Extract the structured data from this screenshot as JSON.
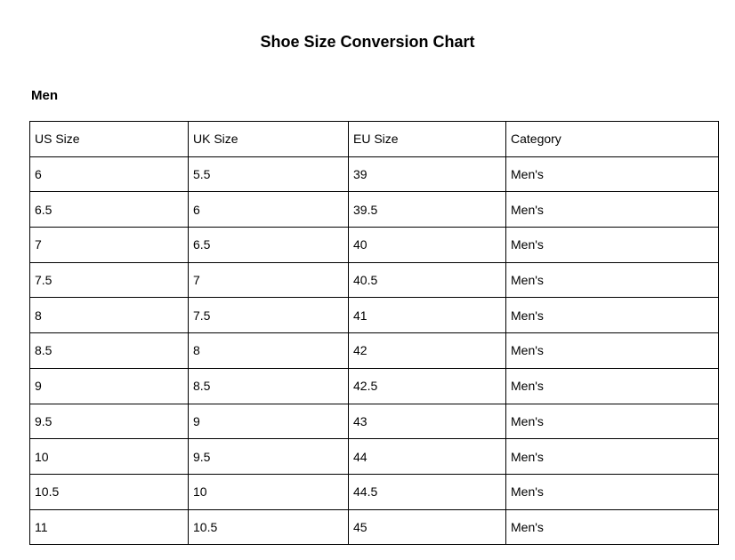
{
  "page": {
    "title": "Shoe Size Conversion Chart",
    "section_heading": "Men"
  },
  "table": {
    "headers": [
      "US Size",
      "UK Size",
      "EU Size",
      "Category"
    ],
    "rows": [
      [
        "6",
        "5.5",
        "39",
        "Men's"
      ],
      [
        "6.5",
        "6",
        "39.5",
        "Men's"
      ],
      [
        "7",
        "6.5",
        "40",
        "Men's"
      ],
      [
        "7.5",
        "7",
        "40.5",
        "Men's"
      ],
      [
        "8",
        "7.5",
        "41",
        "Men's"
      ],
      [
        "8.5",
        "8",
        "42",
        "Men's"
      ],
      [
        "9",
        "8.5",
        "42.5",
        "Men's"
      ],
      [
        "9.5",
        "9",
        "43",
        "Men's"
      ],
      [
        "10",
        "9.5",
        "44",
        "Men's"
      ],
      [
        "10.5",
        "10",
        "44.5",
        "Men's"
      ],
      [
        "11",
        "10.5",
        "45",
        "Men's"
      ]
    ]
  },
  "colors": {
    "text": "#000000",
    "border": "#000000",
    "background": "#ffffff"
  }
}
